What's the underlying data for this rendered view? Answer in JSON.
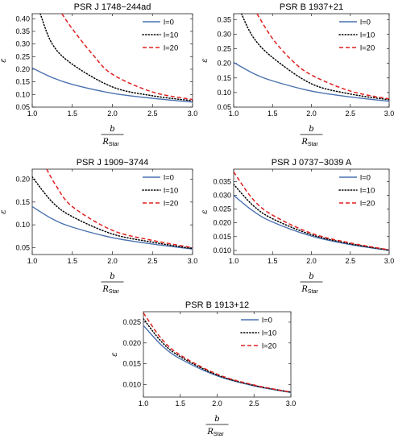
{
  "chart_data": [
    {
      "type": "line",
      "title": "PSR J 1748−244ad",
      "xlabel": "b",
      "xlabel_denominator": "R",
      "xlabel_sub": "Star",
      "ylabel": "ε",
      "xlim": [
        1.0,
        3.0
      ],
      "ylim": [
        0.05,
        0.42
      ],
      "xticks": [
        "1.0",
        "1.5",
        "2.0",
        "2.5",
        "3.0"
      ],
      "yticks": [
        "0.05",
        "0.10",
        "0.15",
        "0.20",
        "0.25",
        "0.30",
        "0.35",
        "0.40"
      ],
      "legend": "top-right",
      "series": [
        {
          "name": "l=0",
          "style": "solid",
          "color": "#4a72b0",
          "x": [
            1.0,
            1.25,
            1.5,
            2.0,
            2.5,
            3.0
          ],
          "y": [
            0.205,
            0.167,
            0.14,
            0.105,
            0.085,
            0.07
          ]
        },
        {
          "name": "l=10",
          "style": "dotted",
          "color": "#000000",
          "x": [
            1.1,
            1.25,
            1.5,
            2.0,
            2.5,
            3.0
          ],
          "y": [
            0.42,
            0.3,
            0.22,
            0.13,
            0.095,
            0.075
          ]
        },
        {
          "name": "l=20",
          "style": "dashed",
          "color": "#e02020",
          "x": [
            1.37,
            1.5,
            1.75,
            2.0,
            2.5,
            3.0
          ],
          "y": [
            0.42,
            0.36,
            0.26,
            0.18,
            0.11,
            0.08
          ]
        }
      ]
    },
    {
      "type": "line",
      "title": "PSR B 1937+21",
      "xlabel": "b",
      "xlabel_denominator": "R",
      "xlabel_sub": "Star",
      "ylabel": "ε",
      "xlim": [
        1.0,
        3.0
      ],
      "ylim": [
        0.05,
        0.37
      ],
      "xticks": [
        "1.0",
        "1.5",
        "2.0",
        "2.5",
        "3.0"
      ],
      "yticks": [
        "0.05",
        "0.10",
        "0.15",
        "0.20",
        "0.25",
        "0.30",
        "0.35"
      ],
      "legend": "top-right",
      "series": [
        {
          "name": "l=0",
          "style": "solid",
          "color": "#4a72b0",
          "x": [
            1.0,
            1.25,
            1.5,
            2.0,
            2.5,
            3.0
          ],
          "y": [
            0.203,
            0.166,
            0.14,
            0.105,
            0.085,
            0.07
          ]
        },
        {
          "name": "l=10",
          "style": "dotted",
          "color": "#000000",
          "x": [
            1.1,
            1.25,
            1.5,
            2.0,
            2.5,
            3.0
          ],
          "y": [
            0.37,
            0.29,
            0.22,
            0.13,
            0.095,
            0.075
          ]
        },
        {
          "name": "l=20",
          "style": "dashed",
          "color": "#e02020",
          "x": [
            1.3,
            1.5,
            1.75,
            2.0,
            2.5,
            3.0
          ],
          "y": [
            0.37,
            0.285,
            0.21,
            0.16,
            0.105,
            0.078
          ]
        }
      ]
    },
    {
      "type": "line",
      "title": "PSR J 1909−3744",
      "xlabel": "b",
      "xlabel_denominator": "R",
      "xlabel_sub": "Star",
      "ylabel": "ε",
      "xlim": [
        1.0,
        3.0
      ],
      "ylim": [
        0.035,
        0.222
      ],
      "xticks": [
        "1.0",
        "1.5",
        "2.0",
        "2.5",
        "3.0"
      ],
      "yticks": [
        "0.05",
        "0.10",
        "0.15",
        "0.20"
      ],
      "legend": "top-right",
      "series": [
        {
          "name": "l=0",
          "style": "solid",
          "color": "#4a72b0",
          "x": [
            1.0,
            1.25,
            1.5,
            2.0,
            2.5,
            3.0
          ],
          "y": [
            0.14,
            0.113,
            0.095,
            0.072,
            0.058,
            0.047
          ]
        },
        {
          "name": "l=10",
          "style": "dotted",
          "color": "#000000",
          "x": [
            1.0,
            1.25,
            1.5,
            2.0,
            2.5,
            3.0
          ],
          "y": [
            0.205,
            0.15,
            0.118,
            0.08,
            0.062,
            0.048
          ]
        },
        {
          "name": "l=20",
          "style": "dashed",
          "color": "#e02020",
          "x": [
            1.18,
            1.3,
            1.5,
            2.0,
            2.5,
            3.0
          ],
          "y": [
            0.222,
            0.185,
            0.14,
            0.088,
            0.066,
            0.05
          ]
        }
      ]
    },
    {
      "type": "line",
      "title": "PSR J 0737−3039 A",
      "xlabel": "b",
      "xlabel_denominator": "R",
      "xlabel_sub": "Star",
      "ylabel": "ε",
      "xlim": [
        1.0,
        3.0
      ],
      "ylim": [
        0.0085,
        0.0395
      ],
      "xticks": [
        "1.0",
        "1.5",
        "2.0",
        "2.5",
        "3.0"
      ],
      "yticks": [
        "0.010",
        "0.015",
        "0.020",
        "0.025",
        "0.030",
        "0.035"
      ],
      "legend": "top-right",
      "series": [
        {
          "name": "l=0",
          "style": "solid",
          "color": "#4a72b0",
          "x": [
            1.0,
            1.25,
            1.5,
            2.0,
            2.5,
            3.0
          ],
          "y": [
            0.03,
            0.0243,
            0.0203,
            0.0152,
            0.0121,
            0.01
          ]
        },
        {
          "name": "l=10",
          "style": "dotted",
          "color": "#000000",
          "x": [
            1.0,
            1.25,
            1.5,
            2.0,
            2.5,
            3.0
          ],
          "y": [
            0.034,
            0.0263,
            0.0215,
            0.0157,
            0.0124,
            0.0101
          ]
        },
        {
          "name": "l=20",
          "style": "dashed",
          "color": "#e02020",
          "x": [
            1.0,
            1.25,
            1.5,
            2.0,
            2.5,
            3.0
          ],
          "y": [
            0.0385,
            0.0285,
            0.0228,
            0.0162,
            0.0127,
            0.0102
          ]
        }
      ]
    },
    {
      "type": "line",
      "title": "PSR B 1913+12",
      "xlabel": "b",
      "xlabel_denominator": "R",
      "xlabel_sub": "Star",
      "ylabel": "ε",
      "xlim": [
        1.0,
        3.0
      ],
      "ylim": [
        0.007,
        0.0275
      ],
      "xticks": [
        "1.0",
        "1.5",
        "2.0",
        "2.5",
        "3.0"
      ],
      "yticks": [
        "0.010",
        "0.015",
        "0.020",
        "0.025"
      ],
      "legend": "top-right",
      "series": [
        {
          "name": "l=0",
          "style": "solid",
          "color": "#4a72b0",
          "x": [
            1.0,
            1.25,
            1.5,
            2.0,
            2.5,
            3.0
          ],
          "y": [
            0.0242,
            0.0194,
            0.0162,
            0.0121,
            0.0097,
            0.0081
          ]
        },
        {
          "name": "l=10",
          "style": "dotted",
          "color": "#000000",
          "x": [
            1.0,
            1.25,
            1.5,
            2.0,
            2.5,
            3.0
          ],
          "y": [
            0.0258,
            0.0202,
            0.0167,
            0.0123,
            0.0098,
            0.0082
          ]
        },
        {
          "name": "l=20",
          "style": "dashed",
          "color": "#e02020",
          "x": [
            1.0,
            1.25,
            1.5,
            2.0,
            2.5,
            3.0
          ],
          "y": [
            0.0272,
            0.0209,
            0.0171,
            0.0125,
            0.0099,
            0.0082
          ]
        }
      ]
    }
  ]
}
